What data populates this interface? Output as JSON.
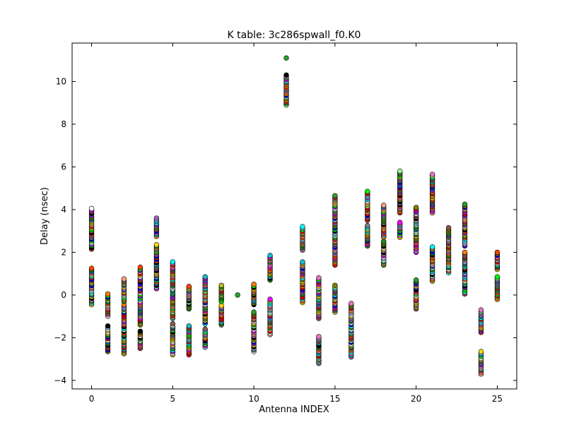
{
  "chart_data": {
    "type": "scatter",
    "title": "K table: 3c286spwall_f0.K0",
    "xlabel": "Antenna INDEX",
    "ylabel": "Delay (nsec)",
    "xlim": [
      -1.2,
      26.2
    ],
    "ylim": [
      -4.4,
      11.8
    ],
    "xticks": [
      "0",
      "5",
      "10",
      "15",
      "20",
      "25"
    ],
    "yticks": [
      "−4",
      "−2",
      "0",
      "2",
      "4",
      "6",
      "8",
      "10"
    ],
    "grid": false,
    "marker": "circle",
    "colors": [
      "#ff7f0e",
      "#1f77b4",
      "#2ca02c",
      "#d62728",
      "#9467bd",
      "#8c564b",
      "#e377c2",
      "#7f7f7f",
      "#bcbd22",
      "#17becf",
      "#ffffff",
      "#000000",
      "#ffd700",
      "#00ff00",
      "#00ffff",
      "#ff00ff",
      "#0000ff",
      "#ff0000",
      "#808000",
      "#ffa07a",
      "#87cefa",
      "#98fb98",
      "#8a2be2",
      "#228b22",
      "#ff4500"
    ],
    "antennas": [
      {
        "x": 0,
        "min": -0.45,
        "max": 1.25,
        "min2": 2.15,
        "max2": 4.05
      },
      {
        "x": 1,
        "min": -2.65,
        "max": -1.45,
        "min2": -1.0,
        "max2": 0.05
      },
      {
        "x": 2,
        "min": -2.75,
        "max": -0.45,
        "min2": -0.3,
        "max2": 0.75
      },
      {
        "x": 3,
        "min": -2.5,
        "max": -1.7,
        "min2": -1.4,
        "max2": 1.3
      },
      {
        "x": 4,
        "min": 0.3,
        "max": 2.35,
        "min2": 2.75,
        "max2": 3.6
      },
      {
        "x": 5,
        "min": -2.8,
        "max": -1.35,
        "min2": -1.1,
        "max2": 1.55
      },
      {
        "x": 6,
        "min": -2.8,
        "max": -1.45,
        "min2": -0.65,
        "max2": 0.4
      },
      {
        "x": 7,
        "min": -2.45,
        "max": -1.6,
        "min2": -1.35,
        "max2": 0.85
      },
      {
        "x": 8,
        "min": -1.4,
        "max": -0.5,
        "min2": -0.3,
        "max2": 0.45
      },
      {
        "x": 9,
        "min": 0.0,
        "max": 0.0
      },
      {
        "x": 10,
        "min": -2.65,
        "max": -0.8,
        "min2": -0.45,
        "max2": 0.5
      },
      {
        "x": 11,
        "min": -1.85,
        "max": -0.2,
        "min2": 0.7,
        "max2": 1.85
      },
      {
        "x": 12,
        "min": 8.9,
        "max": 10.3,
        "min2": 11.1,
        "max2": 11.1
      },
      {
        "x": 13,
        "min": -0.35,
        "max": 1.55,
        "min2": 2.1,
        "max2": 3.2
      },
      {
        "x": 14,
        "min": -3.2,
        "max": -1.95,
        "min2": -1.1,
        "max2": 0.8
      },
      {
        "x": 15,
        "min": -0.8,
        "max": 0.45,
        "min2": 1.4,
        "max2": 4.65
      },
      {
        "x": 16,
        "min": -2.9,
        "max": -0.4
      },
      {
        "x": 17,
        "min": 2.3,
        "max": 3.25,
        "min2": 3.5,
        "max2": 4.85
      },
      {
        "x": 18,
        "min": 1.4,
        "max": 2.5,
        "min2": 2.7,
        "max2": 4.2
      },
      {
        "x": 19,
        "min": 2.7,
        "max": 3.4,
        "min2": 3.85,
        "max2": 5.8
      },
      {
        "x": 20,
        "min": -0.65,
        "max": 0.7,
        "min2": 2.0,
        "max2": 4.1
      },
      {
        "x": 21,
        "min": 0.65,
        "max": 2.25,
        "min2": 3.85,
        "max2": 5.65
      },
      {
        "x": 22,
        "min": 1.05,
        "max": 3.15
      },
      {
        "x": 23,
        "min": 0.05,
        "max": 2.0,
        "min2": 2.3,
        "max2": 4.25
      },
      {
        "x": 24,
        "min": -3.7,
        "max": -2.65,
        "min2": -1.75,
        "max2": -0.7
      },
      {
        "x": 25,
        "min": -0.2,
        "max": 0.85,
        "min2": 1.2,
        "max2": 2.0
      }
    ]
  }
}
